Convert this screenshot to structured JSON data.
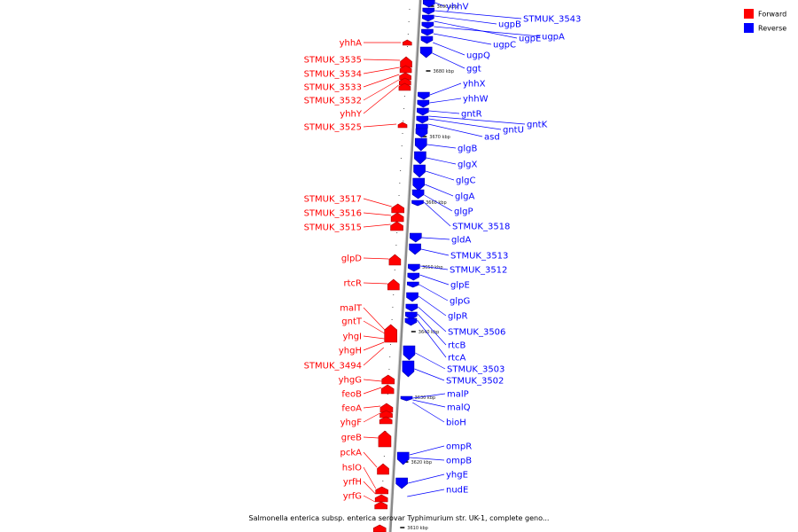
{
  "title": "Salmonella enterica subsp. enterica serovar Typhimurium str. UK-1, complete geno...",
  "legend": [
    {
      "label": "Forward",
      "color": "#ff0000"
    },
    {
      "label": "Reverse",
      "color": "#0000ff"
    }
  ],
  "ticks": [
    "3690 kbp",
    "3680 kbp",
    "3670 kbp",
    "3660 kbp",
    "3650 kbp",
    "3640 kbp",
    "3630 kbp",
    "3620 kbp",
    "3610 kbp"
  ],
  "forward_genes": [
    "yhhA",
    "STMUK_3535",
    "STMUK_3534",
    "STMUK_3533",
    "STMUK_3532",
    "yhhY",
    "STMUK_3525",
    "STMUK_3517",
    "STMUK_3516",
    "STMUK_3515",
    "glpD",
    "rtcR",
    "malT",
    "gntT",
    "yhgI",
    "yhgH",
    "STMUK_3494",
    "yhgG",
    "feoB",
    "feoA",
    "yhgF",
    "greB",
    "pckA",
    "hslO",
    "yrfH",
    "yrfG"
  ],
  "reverse_genes": [
    "yhhV",
    "STMUK_3543",
    "ugpB",
    "ugpE",
    "ugpA",
    "ugpC",
    "ugpQ",
    "ggt",
    "yhhX",
    "yhhW",
    "gntR",
    "gntK",
    "gntU",
    "asd",
    "glgB",
    "glgX",
    "glgC",
    "glgA",
    "glgP",
    "STMUK_3518",
    "gldA",
    "STMUK_3513",
    "STMUK_3512",
    "glpE",
    "glpG",
    "glpR",
    "STMUK_3506",
    "rtcB",
    "rtcA",
    "STMUK_3503",
    "STMUK_3502",
    "malP",
    "malQ",
    "bioH",
    "ompR",
    "ompB",
    "yhgE",
    "nudE"
  ]
}
